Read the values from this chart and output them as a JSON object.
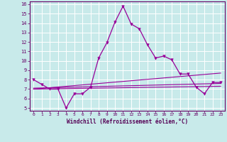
{
  "xlabel": "Windchill (Refroidissement éolien,°C)",
  "bg_color": "#c8eaea",
  "grid_color": "#ffffff",
  "line_color": "#990099",
  "x_main": [
    0,
    1,
    2,
    3,
    4,
    5,
    6,
    7,
    8,
    9,
    10,
    11,
    12,
    13,
    14,
    15,
    16,
    17,
    18,
    19,
    20,
    21,
    22,
    23
  ],
  "y_main": [
    8.0,
    7.5,
    7.0,
    7.0,
    5.0,
    6.5,
    6.5,
    7.2,
    10.3,
    11.9,
    14.1,
    15.8,
    13.9,
    13.4,
    11.7,
    10.3,
    10.5,
    10.1,
    8.6,
    8.6,
    7.2,
    6.5,
    7.7,
    7.7
  ],
  "trend1_x": [
    0,
    23
  ],
  "trend1_y": [
    7.0,
    7.3
  ],
  "trend2_x": [
    0,
    23
  ],
  "trend2_y": [
    7.1,
    7.6
  ],
  "trend3_x": [
    0,
    23
  ],
  "trend3_y": [
    7.0,
    8.7
  ],
  "xlim": [
    -0.5,
    23.5
  ],
  "ylim": [
    4.7,
    16.3
  ],
  "yticks": [
    5,
    6,
    7,
    8,
    9,
    10,
    11,
    12,
    13,
    14,
    15,
    16
  ],
  "xticks": [
    0,
    1,
    2,
    3,
    4,
    5,
    6,
    7,
    8,
    9,
    10,
    11,
    12,
    13,
    14,
    15,
    16,
    17,
    18,
    19,
    20,
    21,
    22,
    23
  ]
}
